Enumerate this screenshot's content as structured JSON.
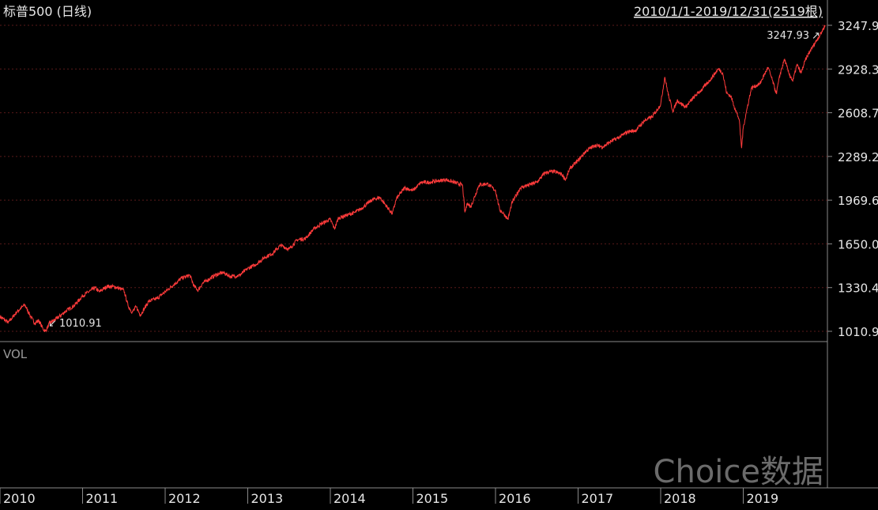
{
  "header": {
    "title": "标普500 (日线)",
    "range": "2010/1/1-2019/12/31(2519根)"
  },
  "volume_panel": {
    "label": "VOL"
  },
  "watermark": "Choice数据",
  "annotations": {
    "max_label": "3247.93",
    "min_label": "1010.91"
  },
  "colors": {
    "background": "#000000",
    "line": "#ff3b3b",
    "grid": "#5a1a1a",
    "text": "#e6e6e6",
    "axis": "#8a8a8a",
    "watermark": "#6b6b6b"
  },
  "chart_data": {
    "type": "line",
    "title": "标普500 (日线)",
    "ylim": [
      1010.91,
      3247.93
    ],
    "y_ticks": [
      "3247.9",
      "2928.3",
      "2608.7",
      "2289.2",
      "1969.6",
      "1650.0",
      "1330.4",
      "1010.9"
    ],
    "y_tick_values": [
      3247.93,
      2928.35,
      2608.78,
      2289.2,
      1969.62,
      1650.05,
      1330.47,
      1010.91
    ],
    "x_ticks": [
      "2010",
      "2011",
      "2012",
      "2013",
      "2014",
      "2015",
      "2016",
      "2017",
      "2018",
      "2019"
    ],
    "x_tick_values": [
      2010.0,
      2011.0,
      2012.0,
      2013.0,
      2014.0,
      2015.0,
      2016.0,
      2017.0,
      2018.0,
      2019.0
    ],
    "xlim": [
      2010.0,
      2020.0
    ],
    "max_point": {
      "x": 2019.99,
      "y": 3247.93
    },
    "min_point": {
      "x": 2010.55,
      "y": 1010.91
    },
    "series": [
      {
        "x": [
          2010.0,
          2010.1,
          2010.2,
          2010.3,
          2010.38,
          2010.42,
          2010.47,
          2010.52,
          2010.55,
          2010.6,
          2010.7,
          2010.8,
          2010.9,
          2011.0,
          2011.1,
          2011.15,
          2011.2,
          2011.3,
          2011.4,
          2011.5,
          2011.55,
          2011.6,
          2011.65,
          2011.7,
          2011.8,
          2011.9,
          2012.0,
          2012.1,
          2012.2,
          2012.3,
          2012.35,
          2012.4,
          2012.45,
          2012.5,
          2012.6,
          2012.7,
          2012.8,
          2012.9,
          2013.0,
          2013.1,
          2013.2,
          2013.3,
          2013.4,
          2013.5,
          2013.6,
          2013.7,
          2013.8,
          2013.9,
          2014.0,
          2014.05,
          2014.1,
          2014.2,
          2014.3,
          2014.4,
          2014.5,
          2014.6,
          2014.75,
          2014.8,
          2014.9,
          2015.0,
          2015.1,
          2015.2,
          2015.3,
          2015.4,
          2015.5,
          2015.6,
          2015.63,
          2015.66,
          2015.7,
          2015.8,
          2015.9,
          2016.0,
          2016.05,
          2016.1,
          2016.15,
          2016.2,
          2016.3,
          2016.4,
          2016.5,
          2016.6,
          2016.7,
          2016.8,
          2016.85,
          2016.9,
          2017.0,
          2017.1,
          2017.2,
          2017.3,
          2017.4,
          2017.5,
          2017.6,
          2017.7,
          2017.8,
          2017.9,
          2018.0,
          2018.05,
          2018.1,
          2018.15,
          2018.2,
          2018.3,
          2018.4,
          2018.5,
          2018.6,
          2018.7,
          2018.75,
          2018.8,
          2018.85,
          2018.9,
          2018.95,
          2018.98,
          2019.0,
          2019.05,
          2019.1,
          2019.2,
          2019.3,
          2019.35,
          2019.4,
          2019.45,
          2019.5,
          2019.55,
          2019.6,
          2019.65,
          2019.7,
          2019.75,
          2019.8,
          2019.85,
          2019.9,
          2019.95,
          2019.99
        ],
        "y": [
          1120,
          1075,
          1150,
          1205,
          1110,
          1070,
          1090,
          1030,
          1010.91,
          1070,
          1110,
          1160,
          1200,
          1270,
          1310,
          1330,
          1300,
          1340,
          1335,
          1310,
          1200,
          1150,
          1190,
          1130,
          1230,
          1250,
          1300,
          1350,
          1400,
          1420,
          1340,
          1310,
          1360,
          1380,
          1420,
          1440,
          1410,
          1420,
          1470,
          1500,
          1550,
          1580,
          1640,
          1610,
          1680,
          1690,
          1760,
          1800,
          1830,
          1760,
          1840,
          1860,
          1880,
          1920,
          1970,
          1990,
          1870,
          1980,
          2060,
          2040,
          2100,
          2100,
          2110,
          2120,
          2100,
          2080,
          1880,
          1950,
          1920,
          2080,
          2090,
          2040,
          1900,
          1870,
          1830,
          1950,
          2060,
          2080,
          2100,
          2170,
          2180,
          2160,
          2120,
          2200,
          2260,
          2330,
          2370,
          2360,
          2400,
          2430,
          2470,
          2480,
          2550,
          2580,
          2670,
          2870,
          2720,
          2620,
          2700,
          2650,
          2720,
          2780,
          2850,
          2930,
          2900,
          2750,
          2730,
          2640,
          2560,
          2350,
          2500,
          2650,
          2790,
          2820,
          2940,
          2850,
          2750,
          2900,
          3000,
          2900,
          2840,
          2960,
          2900,
          2990,
          3050,
          3100,
          3150,
          3200,
          3247.93
        ]
      }
    ]
  }
}
